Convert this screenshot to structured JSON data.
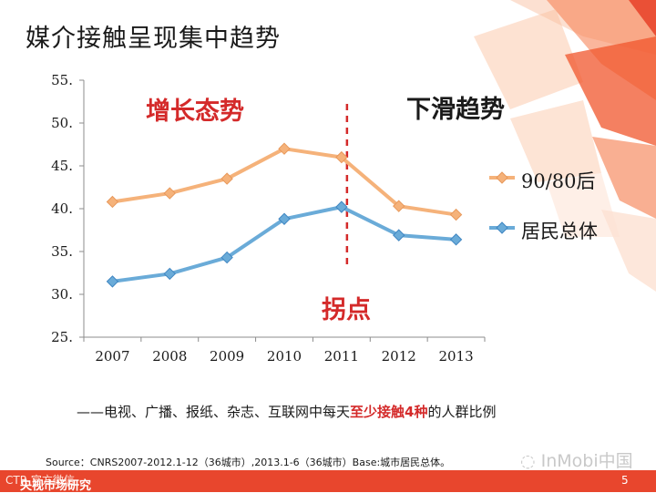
{
  "slide": {
    "title": "媒介接触呈现集中趋势",
    "annotation_growth": "增长态势",
    "annotation_decline": "下滑趋势",
    "annotation_turning_point": "拐点",
    "caption_prefix": "——电视、广播、报纸、杂志、互联网中每天",
    "caption_highlight": "至少接触4种",
    "caption_suffix": "的人群比例",
    "source": "Source：CNRS2007-2012.1-12（36城市）,2013.1-6（36城市）Base:城市居民总体。",
    "brand": "InMobi中国",
    "page_number": "5",
    "footer_org": "央视市场研究",
    "footer_watermark": "CTR 官方微信"
  },
  "colors": {
    "accent_red": "#d42a2a",
    "series_orange": "#f5b27a",
    "series_blue": "#6aabd8",
    "footer": "#e8462d"
  },
  "chart_data": {
    "type": "line",
    "title": "媒介接触呈现集中趋势",
    "xlabel": "",
    "ylabel": "",
    "categories": [
      "2007",
      "2008",
      "2009",
      "2010",
      "2011",
      "2012",
      "2013"
    ],
    "ylim": [
      25,
      55
    ],
    "yticks": [
      25,
      30,
      35,
      40,
      45,
      50,
      55
    ],
    "ytick_labels": [
      "25.",
      "30.",
      "35.",
      "40.",
      "45.",
      "50.",
      "55."
    ],
    "legend_position": "right",
    "turning_point_category": "2011",
    "series": [
      {
        "name": "90/80后",
        "values": [
          40.8,
          41.8,
          43.5,
          47.0,
          46.0,
          40.3,
          39.3
        ]
      },
      {
        "name": "居民总体",
        "values": [
          31.5,
          32.4,
          34.3,
          38.8,
          40.2,
          36.9,
          36.4
        ]
      }
    ]
  }
}
